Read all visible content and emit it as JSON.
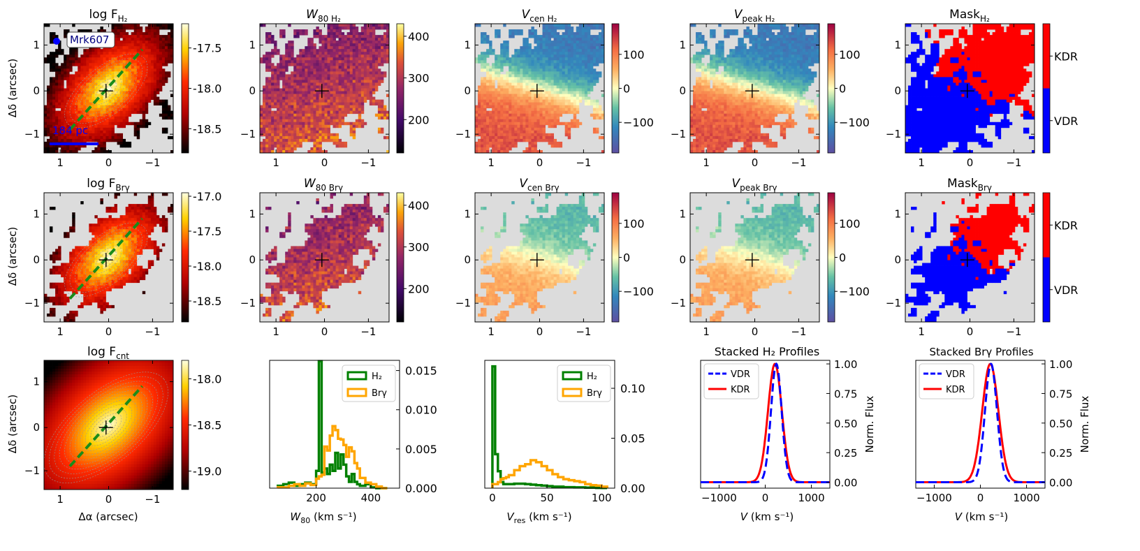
{
  "figure": {
    "galaxy_label": "Mrk607",
    "scalebar_label": "184 pc",
    "row_ylabel": "Δδ (arcsec)",
    "map_xlabel": "Δα (arcsec)",
    "map_xticks": [
      "1",
      "0",
      "−1"
    ],
    "map_yticks": [
      "1",
      "0",
      "−1"
    ]
  },
  "chart_data": [
    {
      "id": "r1c1",
      "type": "heatmap",
      "title_main": "log F",
      "title_sub": "H₂",
      "cmap": "hot",
      "colorbar_ticks": [
        "-17.5",
        "-18.0",
        "-18.5"
      ],
      "colorbar_values": [
        -17.5,
        -18.0,
        -18.5
      ],
      "colorbar_range": [
        -18.8,
        -17.2
      ],
      "pa_line": true,
      "contours": true,
      "show_galaxy_label": true
    },
    {
      "id": "r1c2",
      "type": "heatmap",
      "title_main": "W",
      "title_sub": "80 H₂",
      "cmap": "inferno",
      "colorbar_ticks": [
        "400",
        "300",
        "200"
      ],
      "colorbar_values": [
        400,
        300,
        200
      ],
      "colorbar_range": [
        120,
        430
      ]
    },
    {
      "id": "r1c3",
      "type": "heatmap",
      "title_main": "V",
      "title_sub": "cen H₂",
      "cmap": "spectral",
      "colorbar_ticks": [
        "100",
        "0",
        "−100"
      ],
      "colorbar_values": [
        100,
        0,
        -100
      ],
      "colorbar_range": [
        -190,
        190
      ]
    },
    {
      "id": "r1c4",
      "type": "heatmap",
      "title_main": "V",
      "title_sub": "peak H₂",
      "cmap": "spectral",
      "colorbar_ticks": [
        "100",
        "0",
        "−100"
      ],
      "colorbar_values": [
        100,
        0,
        -100
      ],
      "colorbar_range": [
        -190,
        190
      ]
    },
    {
      "id": "r1c5",
      "type": "heatmap",
      "title_main": "Mask",
      "title_sub": "H₂",
      "cmap": "mask",
      "colorbar_labels": [
        "KDR",
        "VDR"
      ],
      "colors": {
        "KDR": "#ff0000",
        "VDR": "#0000ff"
      }
    },
    {
      "id": "r2c1",
      "type": "heatmap",
      "title_main": "log F",
      "title_sub": "Brγ",
      "cmap": "hot",
      "colorbar_ticks": [
        "-17.0",
        "-17.5",
        "-18.0",
        "-18.5"
      ],
      "colorbar_values": [
        -17.0,
        -17.5,
        -18.0,
        -18.5
      ],
      "colorbar_range": [
        -18.8,
        -16.95
      ],
      "pa_line": true,
      "contours": true
    },
    {
      "id": "r2c2",
      "type": "heatmap",
      "title_main": "W",
      "title_sub": "80 Brγ",
      "cmap": "inferno",
      "colorbar_ticks": [
        "400",
        "300",
        "200"
      ],
      "colorbar_values": [
        400,
        300,
        200
      ],
      "colorbar_range": [
        120,
        430
      ]
    },
    {
      "id": "r2c3",
      "type": "heatmap",
      "title_main": "V",
      "title_sub": "cen Brγ",
      "cmap": "spectral",
      "colorbar_ticks": [
        "100",
        "0",
        "−100"
      ],
      "colorbar_values": [
        100,
        0,
        -100
      ],
      "colorbar_range": [
        -190,
        190
      ]
    },
    {
      "id": "r2c4",
      "type": "heatmap",
      "title_main": "V",
      "title_sub": "peak Brγ",
      "cmap": "spectral",
      "colorbar_ticks": [
        "100",
        "0",
        "−100"
      ],
      "colorbar_values": [
        100,
        0,
        -100
      ],
      "colorbar_range": [
        -190,
        190
      ]
    },
    {
      "id": "r2c5",
      "type": "heatmap",
      "title_main": "Mask",
      "title_sub": "Brγ",
      "cmap": "mask",
      "colorbar_labels": [
        "KDR",
        "VDR"
      ],
      "colors": {
        "KDR": "#ff0000",
        "VDR": "#0000ff"
      }
    },
    {
      "id": "r3c1",
      "type": "heatmap",
      "title_main": "log F",
      "title_sub": "cnt",
      "cmap": "hot",
      "colorbar_ticks": [
        "-18.0",
        "-18.5",
        "-19.0"
      ],
      "colorbar_values": [
        -18.0,
        -18.5,
        -19.0
      ],
      "colorbar_range": [
        -19.2,
        -17.8
      ],
      "pa_line": true,
      "contours": true,
      "filled": true
    }
  ],
  "histograms": [
    {
      "id": "hist-w80",
      "type": "histogram",
      "xlabel_main": "W",
      "xlabel_sub": "80",
      "xlabel_unit": " (km s⁻¹)",
      "xticks": [
        "200",
        "400"
      ],
      "xtick_values": [
        200,
        400
      ],
      "xlim": [
        30,
        505
      ],
      "ylim": [
        0,
        0.0163
      ],
      "yticks": [
        "0.015",
        "0.010",
        "0.005",
        "0.000"
      ],
      "ytick_values": [
        0.015,
        0.01,
        0.005,
        0.0
      ],
      "series": [
        {
          "name": "H₂",
          "color": "#008000",
          "edges": [
            60,
            80,
            100,
            120,
            140,
            160,
            180,
            200,
            210,
            220,
            230,
            240,
            250,
            260,
            270,
            280,
            290,
            300,
            310,
            320,
            330,
            340,
            350,
            360,
            380,
            400,
            420,
            440,
            460
          ],
          "values": [
            0.0003,
            0.0005,
            0.0007,
            0.0003,
            0.0005,
            0.0007,
            0.0005,
            0.0022,
            0.0162,
            0.002,
            0.0025,
            0.0018,
            0.003,
            0.0022,
            0.0045,
            0.0025,
            0.0043,
            0.003,
            0.0015,
            0.0008,
            0.0018,
            0.0008,
            0.0005,
            0.0003,
            0.0005,
            0.0001,
            0.0,
            0.0
          ]
        },
        {
          "name": "Brγ",
          "color": "#ffa500",
          "edges": [
            60,
            80,
            100,
            120,
            140,
            160,
            180,
            200,
            210,
            220,
            230,
            240,
            250,
            260,
            270,
            280,
            290,
            300,
            310,
            320,
            330,
            340,
            350,
            360,
            380,
            400,
            420,
            440,
            460
          ],
          "values": [
            0.0001,
            0.0001,
            0.0003,
            0.0005,
            0.0003,
            0.0006,
            0.0004,
            0.0012,
            0.0015,
            0.0017,
            0.0053,
            0.0048,
            0.0067,
            0.0079,
            0.0074,
            0.0063,
            0.0062,
            0.0055,
            0.004,
            0.0052,
            0.0047,
            0.0032,
            0.0025,
            0.0013,
            0.0007,
            0.0005,
            0.0002,
            0.0
          ]
        }
      ]
    },
    {
      "id": "hist-vres",
      "type": "histogram",
      "xlabel_main": "V",
      "xlabel_sub": "res",
      "xlabel_unit": " (km s⁻¹)",
      "xticks": [
        "0",
        "50",
        "100"
      ],
      "xtick_values": [
        0,
        50,
        100
      ],
      "xlim": [
        -7,
        112
      ],
      "ylim": [
        0,
        0.128
      ],
      "yticks": [
        "0.10",
        "0.05",
        "0.00"
      ],
      "ytick_values": [
        0.1,
        0.05,
        0.0
      ],
      "series": [
        {
          "name": "H₂",
          "color": "#008000",
          "edges": [
            0,
            2.5,
            5,
            7.5,
            10,
            12.5,
            15,
            20,
            25,
            30,
            35,
            40,
            45,
            50,
            55,
            60,
            65,
            70,
            75,
            80,
            85,
            90,
            95,
            100,
            105
          ],
          "values": [
            0.122,
            0.034,
            0.017,
            0.006,
            0.004,
            0.004,
            0.004,
            0.0045,
            0.0045,
            0.004,
            0.0035,
            0.003,
            0.0025,
            0.002,
            0.0015,
            0.0015,
            0.001,
            0.001,
            0.0008,
            0.0008,
            0.0005,
            0.0005,
            0.0003,
            0.0002
          ]
        },
        {
          "name": "Brγ",
          "color": "#ffa500",
          "edges": [
            0,
            2.5,
            5,
            7.5,
            10,
            12.5,
            15,
            20,
            25,
            30,
            35,
            40,
            45,
            50,
            55,
            60,
            65,
            70,
            75,
            80,
            85,
            90,
            95,
            100,
            105
          ],
          "values": [
            0.004,
            0.004,
            0.006,
            0.009,
            0.01,
            0.011,
            0.013,
            0.018,
            0.022,
            0.024,
            0.028,
            0.026,
            0.022,
            0.018,
            0.014,
            0.011,
            0.009,
            0.008,
            0.007,
            0.006,
            0.004,
            0.003,
            0.0025,
            0.0015
          ]
        }
      ]
    }
  ],
  "profiles": [
    {
      "id": "prof-h2",
      "type": "line",
      "title": "Stacked H₂ Profiles",
      "xlabel_main": "V",
      "xlabel_unit": " (km s⁻¹)",
      "ylabel": "Norm. Flux",
      "xlim": [
        -1400,
        1400
      ],
      "ylim": [
        -0.05,
        1.03
      ],
      "xticks": [
        "−1000",
        "0",
        "1000"
      ],
      "xtick_values": [
        -1000,
        0,
        1000
      ],
      "yticks": [
        "1.00",
        "0.75",
        "0.50",
        "0.25",
        "0.00"
      ],
      "ytick_values": [
        1.0,
        0.75,
        0.5,
        0.25,
        0.0
      ],
      "series": [
        {
          "name": "VDR",
          "color": "#0000ff",
          "style": "dashed",
          "center": 240,
          "sigma": 115
        },
        {
          "name": "KDR",
          "color": "#ff0000",
          "style": "solid",
          "center": 210,
          "sigma": 150
        }
      ]
    },
    {
      "id": "prof-brg",
      "type": "line",
      "title": "Stacked Brγ Profiles",
      "xlabel_main": "V",
      "xlabel_unit": " (km s⁻¹)",
      "ylabel": "Norm. Flux",
      "xlim": [
        -1400,
        1400
      ],
      "ylim": [
        -0.05,
        1.03
      ],
      "xticks": [
        "−1000",
        "0",
        "1000"
      ],
      "xtick_values": [
        -1000,
        0,
        1000
      ],
      "yticks": [
        "1.00",
        "0.75",
        "0.50",
        "0.25",
        "0.00"
      ],
      "ytick_values": [
        1.0,
        0.75,
        0.5,
        0.25,
        0.0
      ],
      "series": [
        {
          "name": "VDR",
          "color": "#0000ff",
          "style": "dashed",
          "center": 230,
          "sigma": 130
        },
        {
          "name": "KDR",
          "color": "#ff0000",
          "style": "solid",
          "center": 215,
          "sigma": 175
        }
      ]
    }
  ]
}
